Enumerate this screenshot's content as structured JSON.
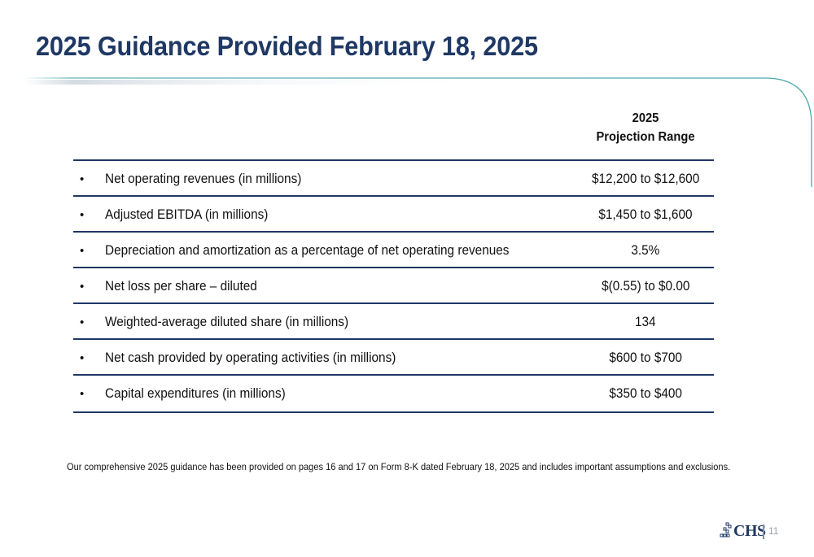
{
  "title": "2025 Guidance Provided February 18, 2025",
  "column_header": {
    "line1": "2025",
    "line2": "Projection Range"
  },
  "rows": [
    {
      "bullet": "•",
      "label": "Net operating revenues (in millions)",
      "value": "$12,200 to $12,600"
    },
    {
      "bullet": "•",
      "label": "Adjusted EBITDA (in millions)",
      "value": "$1,450 to $1,600"
    },
    {
      "bullet": "•",
      "label": "Depreciation and amortization as a percentage of net operating revenues",
      "value": "3.5%"
    },
    {
      "bullet": "•",
      "label": "Net loss per share – diluted",
      "value": "$(0.55) to $0.00"
    },
    {
      "bullet": "•",
      "label": "Weighted-average diluted share (in millions)",
      "value": "134"
    },
    {
      "bullet": "•",
      "label": "Net cash provided by operating activities (in millions)",
      "value": "$600 to $700"
    },
    {
      "bullet": "•",
      "label": "Capital expenditures (in millions)",
      "value": "$350 to $400"
    }
  ],
  "footnote": "Our comprehensive 2025 guidance has been provided on pages 16 and 17 on Form 8-K dated February 18, 2025 and includes important assumptions and exclusions.",
  "logo": {
    "text": "CHS"
  },
  "page_number": "11",
  "colors": {
    "title": "#1f3864",
    "rule": "#1f3864",
    "accent": "#4aa8b0"
  }
}
